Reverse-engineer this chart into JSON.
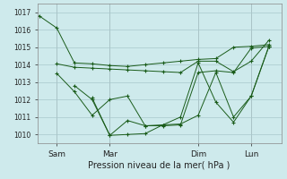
{
  "xlabel": "Pression niveau de la mer( hPa )",
  "background_color": "#ceeaec",
  "grid_color": "#a8c8cc",
  "line_color": "#1a5c1a",
  "ylim": [
    1009.5,
    1017.5
  ],
  "yticks": [
    1010,
    1011,
    1012,
    1013,
    1014,
    1015,
    1016,
    1017
  ],
  "xtick_labels": [
    "Sam",
    "Mar",
    "Dim",
    "Lun"
  ],
  "xtick_positions": [
    1,
    4,
    9,
    12
  ],
  "xlim": [
    -0.1,
    13.7
  ],
  "series": [
    {
      "x": [
        0,
        1,
        2,
        3,
        4,
        5,
        6,
        7,
        8,
        9,
        10,
        11,
        12,
        13
      ],
      "y": [
        1016.8,
        1016.1,
        1014.1,
        1014.05,
        1013.95,
        1013.9,
        1014.0,
        1014.1,
        1014.2,
        1014.3,
        1014.35,
        1015.0,
        1015.05,
        1015.15
      ]
    },
    {
      "x": [
        1,
        2,
        3,
        4,
        5,
        6,
        7,
        8,
        9,
        10,
        11,
        12,
        13
      ],
      "y": [
        1013.5,
        1012.45,
        1011.1,
        1012.0,
        1012.2,
        1010.5,
        1010.5,
        1010.55,
        1013.55,
        1013.65,
        1013.55,
        1014.95,
        1015.05
      ]
    },
    {
      "x": [
        1,
        2,
        3,
        4,
        5,
        6,
        7,
        8,
        9,
        10,
        11,
        12,
        13
      ],
      "y": [
        1014.05,
        1013.85,
        1013.8,
        1013.75,
        1013.7,
        1013.65,
        1013.6,
        1013.55,
        1014.2,
        1014.2,
        1013.6,
        1014.2,
        1015.4
      ]
    },
    {
      "x": [
        2,
        3,
        4,
        5,
        6,
        7,
        8,
        9,
        10,
        11,
        12,
        13
      ],
      "y": [
        1012.8,
        1012.0,
        1009.95,
        1010.0,
        1010.05,
        1010.55,
        1010.6,
        1011.1,
        1013.55,
        1011.0,
        1012.2,
        1015.05
      ]
    },
    {
      "x": [
        3,
        4,
        5,
        6,
        7,
        8,
        9,
        10,
        11,
        12,
        13
      ],
      "y": [
        1012.1,
        1009.95,
        1010.8,
        1010.5,
        1010.55,
        1011.0,
        1014.1,
        1011.85,
        1010.7,
        1012.2,
        1015.05
      ]
    }
  ]
}
